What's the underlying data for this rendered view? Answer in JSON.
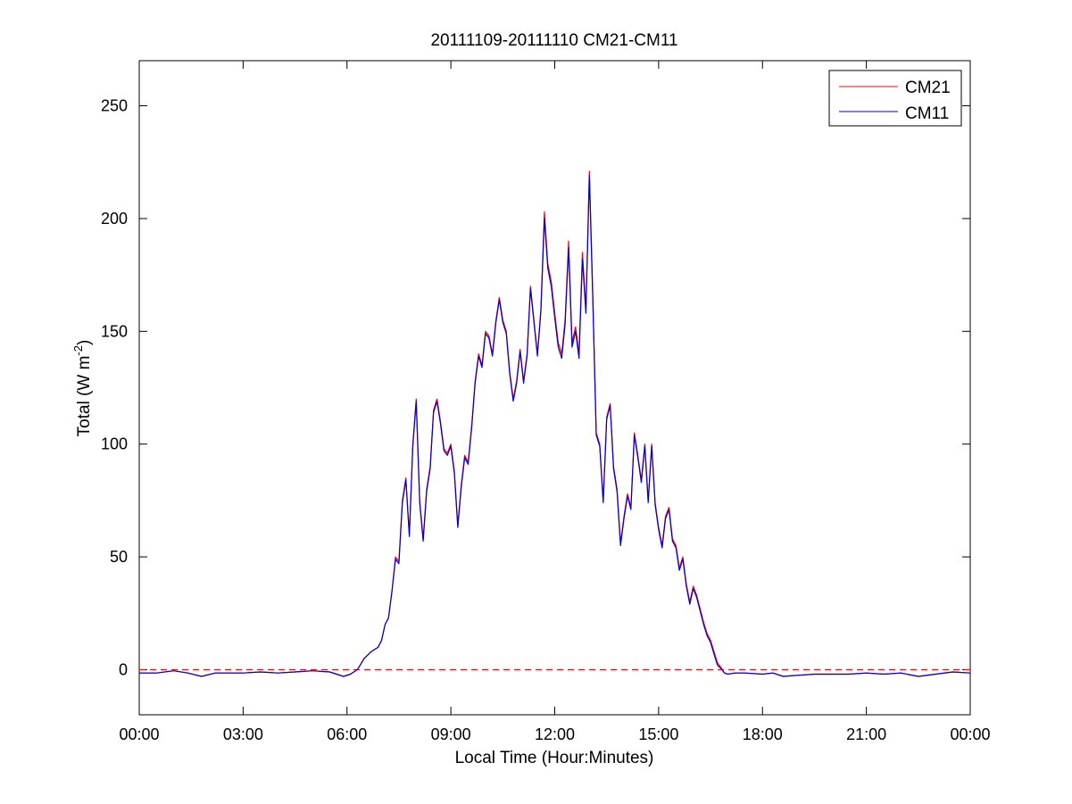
{
  "chart_data": {
    "type": "line",
    "title": "20111109-20111110 CM21-CM11",
    "xlabel": "Local Time (Hour:Minutes)",
    "ylabel": {
      "prefix": "Total (W m",
      "superscript": "-2",
      "suffix": ")"
    },
    "x_unit": "hours",
    "xlim": [
      0,
      24
    ],
    "ylim": [
      -20,
      270
    ],
    "xticks": [
      0,
      3,
      6,
      9,
      12,
      15,
      18,
      21,
      24
    ],
    "xtick_labels": [
      "00:00",
      "03:00",
      "06:00",
      "09:00",
      "12:00",
      "15:00",
      "18:00",
      "21:00",
      "00:00"
    ],
    "yticks": [
      0,
      50,
      100,
      150,
      200,
      250
    ],
    "ytick_labels": [
      "0",
      "50",
      "100",
      "150",
      "200",
      "250"
    ],
    "grid": false,
    "legend_position": "top-right",
    "reference_line": {
      "y": 0,
      "color": "#ff0000",
      "style": "dashed"
    },
    "series": [
      {
        "name": "CM21",
        "color": "#ff0000",
        "x": [
          0,
          0.5,
          1.0,
          1.4,
          1.8,
          2.2,
          2.6,
          3.0,
          3.5,
          4.0,
          4.5,
          5.0,
          5.5,
          5.9,
          6.1,
          6.3,
          6.5,
          6.7,
          6.9,
          7.0,
          7.1,
          7.2,
          7.3,
          7.4,
          7.5,
          7.6,
          7.7,
          7.8,
          7.9,
          8.0,
          8.1,
          8.2,
          8.3,
          8.4,
          8.5,
          8.6,
          8.7,
          8.8,
          8.9,
          9.0,
          9.1,
          9.2,
          9.3,
          9.4,
          9.5,
          9.6,
          9.7,
          9.8,
          9.9,
          10.0,
          10.1,
          10.2,
          10.3,
          10.4,
          10.5,
          10.6,
          10.7,
          10.8,
          10.9,
          11.0,
          11.1,
          11.2,
          11.3,
          11.4,
          11.5,
          11.6,
          11.7,
          11.8,
          11.9,
          12.0,
          12.1,
          12.2,
          12.3,
          12.4,
          12.5,
          12.6,
          12.7,
          12.8,
          12.9,
          13.0,
          13.1,
          13.2,
          13.3,
          13.4,
          13.5,
          13.6,
          13.7,
          13.8,
          13.9,
          14.0,
          14.1,
          14.2,
          14.3,
          14.4,
          14.5,
          14.6,
          14.7,
          14.8,
          14.9,
          15.0,
          15.1,
          15.2,
          15.3,
          15.4,
          15.5,
          15.6,
          15.7,
          15.8,
          15.9,
          16.0,
          16.1,
          16.2,
          16.3,
          16.4,
          16.5,
          16.6,
          16.7,
          16.8,
          16.9,
          17.0,
          17.2,
          17.5,
          18.0,
          18.3,
          18.6,
          19.0,
          19.5,
          20.0,
          20.5,
          21.0,
          21.5,
          22.0,
          22.5,
          23.0,
          23.5,
          24.0
        ],
        "y": [
          -1.5,
          -1.5,
          -0.5,
          -1.5,
          -3,
          -1.5,
          -1.5,
          -1.5,
          -1,
          -1.5,
          -1,
          -0.5,
          -1,
          -3,
          -2,
          0,
          5,
          8,
          10,
          13,
          20,
          23,
          35,
          50,
          48,
          75,
          85,
          60,
          100,
          120,
          75,
          58,
          80,
          90,
          115,
          120,
          110,
          98,
          96,
          100,
          88,
          64,
          82,
          95,
          92,
          108,
          128,
          140,
          135,
          150,
          148,
          140,
          155,
          165,
          155,
          150,
          132,
          120,
          128,
          142,
          128,
          140,
          170,
          155,
          140,
          160,
          203,
          180,
          172,
          158,
          145,
          140,
          155,
          190,
          145,
          152,
          140,
          185,
          160,
          221,
          165,
          105,
          100,
          75,
          112,
          118,
          90,
          80,
          56,
          68,
          78,
          72,
          105,
          95,
          84,
          100,
          75,
          100,
          74,
          63,
          55,
          68,
          72,
          58,
          55,
          45,
          50,
          38,
          30,
          37,
          33,
          27,
          21,
          16,
          13,
          8,
          3,
          1,
          -1.5,
          -2,
          -1.5,
          -1.5,
          -2,
          -1.5,
          -3,
          -2.5,
          -2,
          -2,
          -2,
          -1.5,
          -2,
          -1.5,
          -3,
          -2,
          -1,
          -1.5
        ]
      },
      {
        "name": "CM11",
        "color": "#0000cc",
        "x": [
          0,
          0.5,
          1.0,
          1.4,
          1.8,
          2.2,
          2.6,
          3.0,
          3.5,
          4.0,
          4.5,
          5.0,
          5.5,
          5.9,
          6.1,
          6.3,
          6.5,
          6.7,
          6.9,
          7.0,
          7.1,
          7.2,
          7.3,
          7.4,
          7.5,
          7.6,
          7.7,
          7.8,
          7.9,
          8.0,
          8.1,
          8.2,
          8.3,
          8.4,
          8.5,
          8.6,
          8.7,
          8.8,
          8.9,
          9.0,
          9.1,
          9.2,
          9.3,
          9.4,
          9.5,
          9.6,
          9.7,
          9.8,
          9.9,
          10.0,
          10.1,
          10.2,
          10.3,
          10.4,
          10.5,
          10.6,
          10.7,
          10.8,
          10.9,
          11.0,
          11.1,
          11.2,
          11.3,
          11.4,
          11.5,
          11.6,
          11.7,
          11.8,
          11.9,
          12.0,
          12.1,
          12.2,
          12.3,
          12.4,
          12.5,
          12.6,
          12.7,
          12.8,
          12.9,
          13.0,
          13.1,
          13.2,
          13.3,
          13.4,
          13.5,
          13.6,
          13.7,
          13.8,
          13.9,
          14.0,
          14.1,
          14.2,
          14.3,
          14.4,
          14.5,
          14.6,
          14.7,
          14.8,
          14.9,
          15.0,
          15.1,
          15.2,
          15.3,
          15.4,
          15.5,
          15.6,
          15.7,
          15.8,
          15.9,
          16.0,
          16.1,
          16.2,
          16.3,
          16.4,
          16.5,
          16.6,
          16.7,
          16.8,
          16.9,
          17.0,
          17.2,
          17.5,
          18.0,
          18.3,
          18.6,
          19.0,
          19.5,
          20.0,
          20.5,
          21.0,
          21.5,
          22.0,
          22.5,
          23.0,
          23.5,
          24.0
        ],
        "y": [
          -1.5,
          -1.5,
          -0.5,
          -1.5,
          -3,
          -1.5,
          -1.5,
          -1.5,
          -1,
          -1.5,
          -1,
          -0.5,
          -1,
          -3,
          -2,
          0,
          5,
          8,
          10,
          13,
          20,
          23,
          35,
          49,
          47,
          74,
          84,
          59,
          99,
          119,
          74,
          57,
          79,
          89,
          114,
          119,
          109,
          97,
          95,
          99,
          87,
          63,
          81,
          94,
          91,
          107,
          127,
          139,
          134,
          149,
          147,
          139,
          154,
          164,
          154,
          149,
          131,
          119,
          127,
          141,
          127,
          139,
          169,
          154,
          139,
          159,
          200,
          178,
          170,
          156,
          143,
          138,
          153,
          187,
          143,
          150,
          138,
          182,
          158,
          219,
          163,
          104,
          99,
          74,
          111,
          117,
          89,
          79,
          55,
          67,
          77,
          71,
          104,
          94,
          83,
          99,
          74,
          99,
          73,
          62,
          54,
          67,
          71,
          57,
          54,
          44,
          49,
          37,
          29,
          36,
          32,
          26,
          20,
          15,
          12,
          7,
          2,
          0.5,
          -1.5,
          -2,
          -1.5,
          -1.5,
          -2,
          -1.5,
          -3,
          -2.5,
          -2,
          -2,
          -2,
          -1.5,
          -2,
          -1.5,
          -3,
          -2,
          -1,
          -1.5
        ]
      }
    ]
  }
}
